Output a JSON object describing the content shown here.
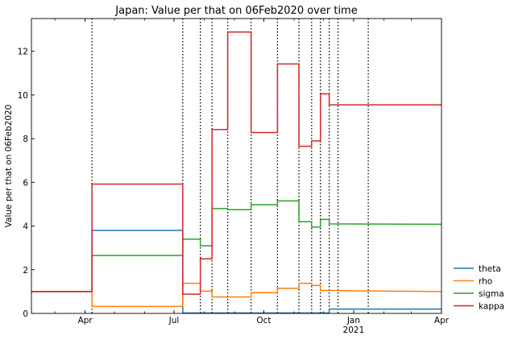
{
  "chart_data": {
    "type": "line",
    "title": "Japan: Value per that on 06Feb2020 over time",
    "xlabel": "",
    "ylabel": "Value per that on 06Feb2020",
    "x_axis": {
      "type": "date",
      "range": [
        "2020-02-06",
        "2021-04-01"
      ],
      "ticks": [
        {
          "date": "2020-04-01",
          "label": "Apr",
          "sub": ""
        },
        {
          "date": "2020-07-01",
          "label": "Jul",
          "sub": ""
        },
        {
          "date": "2020-10-01",
          "label": "Oct",
          "sub": ""
        },
        {
          "date": "2021-01-01",
          "label": "Jan",
          "sub": "2021"
        },
        {
          "date": "2021-04-01",
          "label": "Apr",
          "sub": ""
        }
      ]
    },
    "y_axis": {
      "range": [
        0,
        13.5
      ],
      "ticks": [
        0,
        2,
        4,
        6,
        8,
        10,
        12
      ]
    },
    "change_dates": [
      "2020-04-08",
      "2020-07-10",
      "2020-07-28",
      "2020-08-09",
      "2020-08-25",
      "2020-09-18",
      "2020-10-15",
      "2020-11-06",
      "2020-11-19",
      "2020-11-28",
      "2020-12-07",
      "2020-12-16",
      "2021-01-16"
    ],
    "grid": false,
    "legend_position": "outside-bottom-right",
    "series": [
      {
        "name": "theta",
        "color": "#1f77b4",
        "points": [
          [
            "2020-02-06",
            1.0
          ],
          [
            "2020-04-08",
            1.0
          ],
          [
            "2020-04-08",
            3.8
          ],
          [
            "2020-07-10",
            3.8
          ],
          [
            "2020-07-10",
            0.02
          ],
          [
            "2020-12-07",
            0.02
          ],
          [
            "2020-12-07",
            0.2
          ],
          [
            "2021-04-01",
            0.2
          ]
        ]
      },
      {
        "name": "rho",
        "color": "#ff7f0e",
        "points": [
          [
            "2020-02-06",
            1.0
          ],
          [
            "2020-04-08",
            1.0
          ],
          [
            "2020-04-08",
            0.32
          ],
          [
            "2020-07-10",
            0.32
          ],
          [
            "2020-07-10",
            1.38
          ],
          [
            "2020-07-28",
            1.38
          ],
          [
            "2020-07-28",
            1.02
          ],
          [
            "2020-08-09",
            1.02
          ],
          [
            "2020-08-09",
            0.75
          ],
          [
            "2020-09-18",
            0.75
          ],
          [
            "2020-09-18",
            0.95
          ],
          [
            "2020-10-15",
            0.95
          ],
          [
            "2020-10-15",
            1.15
          ],
          [
            "2020-11-06",
            1.15
          ],
          [
            "2020-11-06",
            1.38
          ],
          [
            "2020-11-19",
            1.38
          ],
          [
            "2020-11-19",
            1.28
          ],
          [
            "2020-11-28",
            1.28
          ],
          [
            "2020-11-28",
            1.05
          ],
          [
            "2020-12-07",
            1.05
          ],
          [
            "2021-01-16",
            1.03
          ],
          [
            "2021-04-01",
            1.0
          ]
        ]
      },
      {
        "name": "sigma",
        "color": "#2ca02c",
        "points": [
          [
            "2020-02-06",
            1.0
          ],
          [
            "2020-04-08",
            1.0
          ],
          [
            "2020-04-08",
            2.65
          ],
          [
            "2020-07-10",
            2.65
          ],
          [
            "2020-07-10",
            3.4
          ],
          [
            "2020-07-28",
            3.4
          ],
          [
            "2020-07-28",
            3.1
          ],
          [
            "2020-08-09",
            3.1
          ],
          [
            "2020-08-09",
            4.8
          ],
          [
            "2020-08-25",
            4.8
          ],
          [
            "2020-08-25",
            4.75
          ],
          [
            "2020-09-18",
            4.75
          ],
          [
            "2020-09-18",
            4.98
          ],
          [
            "2020-10-15",
            4.98
          ],
          [
            "2020-10-15",
            5.15
          ],
          [
            "2020-11-06",
            5.15
          ],
          [
            "2020-11-06",
            4.2
          ],
          [
            "2020-11-19",
            4.2
          ],
          [
            "2020-11-19",
            3.95
          ],
          [
            "2020-11-28",
            3.95
          ],
          [
            "2020-11-28",
            4.3
          ],
          [
            "2020-12-07",
            4.3
          ],
          [
            "2020-12-07",
            4.1
          ],
          [
            "2021-04-01",
            4.08
          ]
        ]
      },
      {
        "name": "kappa",
        "color": "#d62728",
        "points": [
          [
            "2020-02-06",
            1.0
          ],
          [
            "2020-04-08",
            1.0
          ],
          [
            "2020-04-08",
            5.92
          ],
          [
            "2020-07-10",
            5.92
          ],
          [
            "2020-07-10",
            0.88
          ],
          [
            "2020-07-28",
            0.88
          ],
          [
            "2020-07-28",
            2.5
          ],
          [
            "2020-08-09",
            2.5
          ],
          [
            "2020-08-09",
            8.42
          ],
          [
            "2020-08-25",
            8.42
          ],
          [
            "2020-08-25",
            12.88
          ],
          [
            "2020-09-18",
            12.88
          ],
          [
            "2020-09-18",
            8.28
          ],
          [
            "2020-10-15",
            8.28
          ],
          [
            "2020-10-15",
            11.42
          ],
          [
            "2020-11-06",
            11.42
          ],
          [
            "2020-11-06",
            7.65
          ],
          [
            "2020-11-19",
            7.65
          ],
          [
            "2020-11-19",
            7.9
          ],
          [
            "2020-11-28",
            7.9
          ],
          [
            "2020-11-28",
            10.05
          ],
          [
            "2020-12-07",
            10.05
          ],
          [
            "2020-12-07",
            9.55
          ],
          [
            "2021-04-01",
            9.55
          ]
        ]
      }
    ]
  }
}
